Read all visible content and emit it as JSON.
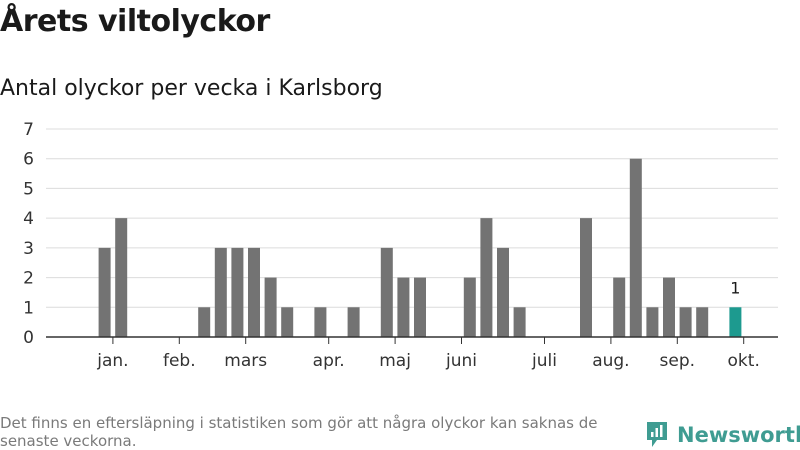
{
  "header": {
    "title": "Årets viltolyckor",
    "subtitle": "Antal olyckor per vecka i Karlsborg"
  },
  "chart_data": {
    "type": "bar",
    "title": "Årets viltolyckor",
    "subtitle": "Antal olyckor per vecka i Karlsborg",
    "ylim": [
      0,
      7
    ],
    "y_ticks": [
      0,
      1,
      2,
      3,
      4,
      5,
      6,
      7
    ],
    "grid": true,
    "weeks": [
      1,
      2,
      3,
      4,
      5,
      6,
      7,
      8,
      9,
      10,
      11,
      12,
      13,
      14,
      15,
      16,
      17,
      18,
      19,
      20,
      21,
      22,
      23,
      24,
      25,
      26,
      27,
      28,
      29,
      30,
      31,
      32,
      33,
      34,
      35,
      36,
      37,
      38,
      39,
      40,
      41
    ],
    "values": [
      0,
      3,
      4,
      0,
      0,
      0,
      0,
      1,
      3,
      3,
      3,
      2,
      1,
      0,
      1,
      0,
      1,
      0,
      3,
      2,
      2,
      0,
      0,
      2,
      4,
      3,
      1,
      0,
      0,
      0,
      4,
      0,
      2,
      6,
      1,
      2,
      1,
      1,
      0,
      1,
      0
    ],
    "highlight_index": 39,
    "highlight_label": "1",
    "month_labels": [
      {
        "label": "jan.",
        "week": 2.5
      },
      {
        "label": "feb.",
        "week": 6.5
      },
      {
        "label": "mars",
        "week": 10.5
      },
      {
        "label": "apr.",
        "week": 15.5
      },
      {
        "label": "maj",
        "week": 19.5
      },
      {
        "label": "juni",
        "week": 23.5
      },
      {
        "label": "juli",
        "week": 28.5
      },
      {
        "label": "aug.",
        "week": 32.5
      },
      {
        "label": "sep.",
        "week": 36.5
      },
      {
        "label": "okt.",
        "week": 40.5
      }
    ],
    "colors": {
      "bar": "#737373",
      "highlight": "#1d9a8f",
      "grid": "#dcdcdc",
      "axis": "#333333"
    }
  },
  "footer": {
    "note": "Det finns en eftersläpning i statistiken som gör att några olyckor kan saknas de senaste veckorna.",
    "brand": "Newsworthy"
  }
}
